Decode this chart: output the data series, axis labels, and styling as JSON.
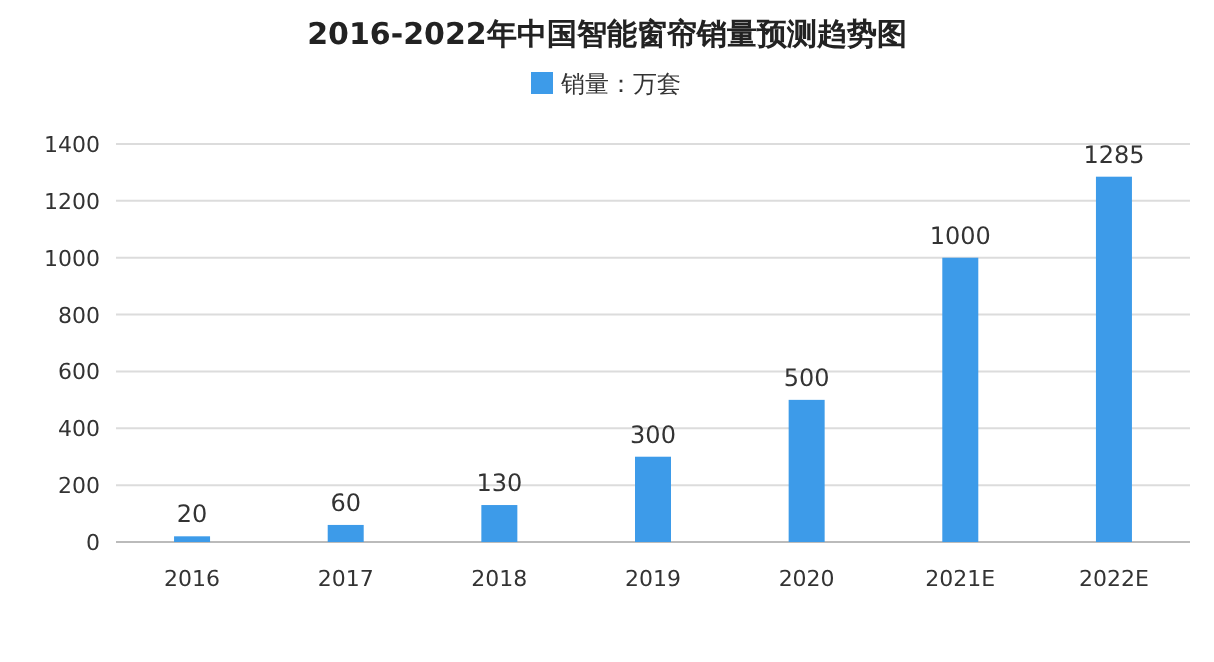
{
  "chart_data": {
    "type": "bar",
    "title": "2016-2022年中国智能窗帘销量预测趋势图",
    "categories": [
      "2016",
      "2017",
      "2018",
      "2019",
      "2020",
      "2021E",
      "2022E"
    ],
    "series": [
      {
        "name": "销量：万套",
        "color": "#3d9be9",
        "values": [
          20,
          60,
          130,
          300,
          500,
          1000,
          1285
        ]
      }
    ],
    "ylim": [
      0,
      1400
    ],
    "yticks": [
      0,
      200,
      400,
      600,
      800,
      1000,
      1200,
      1400
    ],
    "grid": "y",
    "legend": "top",
    "data_labels": true
  }
}
